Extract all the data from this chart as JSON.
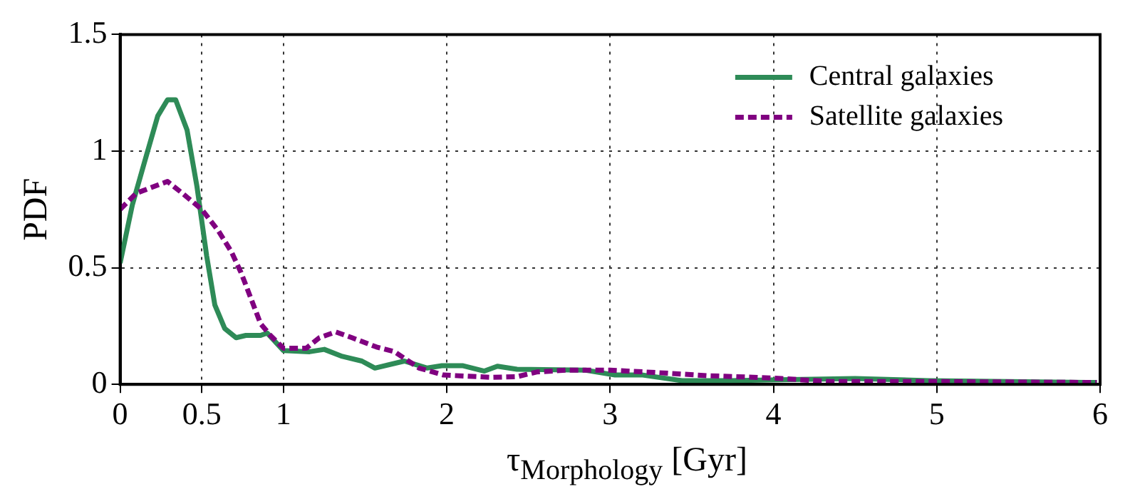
{
  "chart_data": {
    "type": "line",
    "xlabel": "τ$_{Morphology}$ [Gyr]",
    "ylabel": "PDF",
    "xlim": [
      0,
      6
    ],
    "xticks": [
      0,
      0.5,
      1,
      2,
      3,
      4,
      5,
      6
    ],
    "ylim": [
      0,
      1.5
    ],
    "yticks": [
      0,
      0.5,
      1,
      1.5
    ],
    "grid": true,
    "legend": "top right",
    "marker": "none",
    "series": [
      {
        "name": "Central galaxies",
        "color": "#2e8b57",
        "line_style": "solid",
        "x": [
          0,
          0.075,
          0.15,
          0.23,
          0.29,
          0.34,
          0.41,
          0.47,
          0.53,
          0.58,
          0.64,
          0.71,
          0.77,
          0.86,
          0.9,
          1.0,
          1.16,
          1.25,
          1.36,
          1.48,
          1.56,
          1.74,
          1.88,
          1.97,
          2.1,
          2.23,
          2.31,
          2.43,
          2.85,
          3.03,
          3.2,
          3.44,
          3.74,
          4.04,
          4.5,
          4.95,
          5.98
        ],
        "values": [
          0.52,
          0.77,
          0.955,
          1.15,
          1.22,
          1.22,
          1.09,
          0.85,
          0.55,
          0.34,
          0.24,
          0.2,
          0.21,
          0.21,
          0.22,
          0.145,
          0.14,
          0.15,
          0.12,
          0.1,
          0.07,
          0.1,
          0.07,
          0.08,
          0.08,
          0.057,
          0.078,
          0.065,
          0.061,
          0.04,
          0.04,
          0.016,
          0.016,
          0.02,
          0.025,
          0.016,
          0.008
        ]
      },
      {
        "name": "Satellite galaxies",
        "color": "#800080",
        "line_style": "dashed",
        "x": [
          0,
          0.1,
          0.29,
          0.38,
          0.5,
          0.6,
          0.68,
          0.74,
          0.8,
          0.86,
          0.92,
          1.0,
          1.14,
          1.22,
          1.32,
          1.42,
          1.57,
          1.68,
          1.83,
          1.98,
          2.13,
          2.28,
          2.43,
          2.55,
          2.73,
          3.0,
          3.3,
          3.6,
          3.9,
          4.05,
          4.35,
          4.95,
          5.98
        ],
        "values": [
          0.75,
          0.82,
          0.87,
          0.82,
          0.75,
          0.66,
          0.57,
          0.48,
          0.37,
          0.26,
          0.21,
          0.155,
          0.155,
          0.2,
          0.225,
          0.2,
          0.16,
          0.14,
          0.07,
          0.04,
          0.035,
          0.03,
          0.033,
          0.053,
          0.061,
          0.061,
          0.05,
          0.037,
          0.03,
          0.025,
          0.012,
          0.012,
          0.008
        ]
      }
    ]
  }
}
